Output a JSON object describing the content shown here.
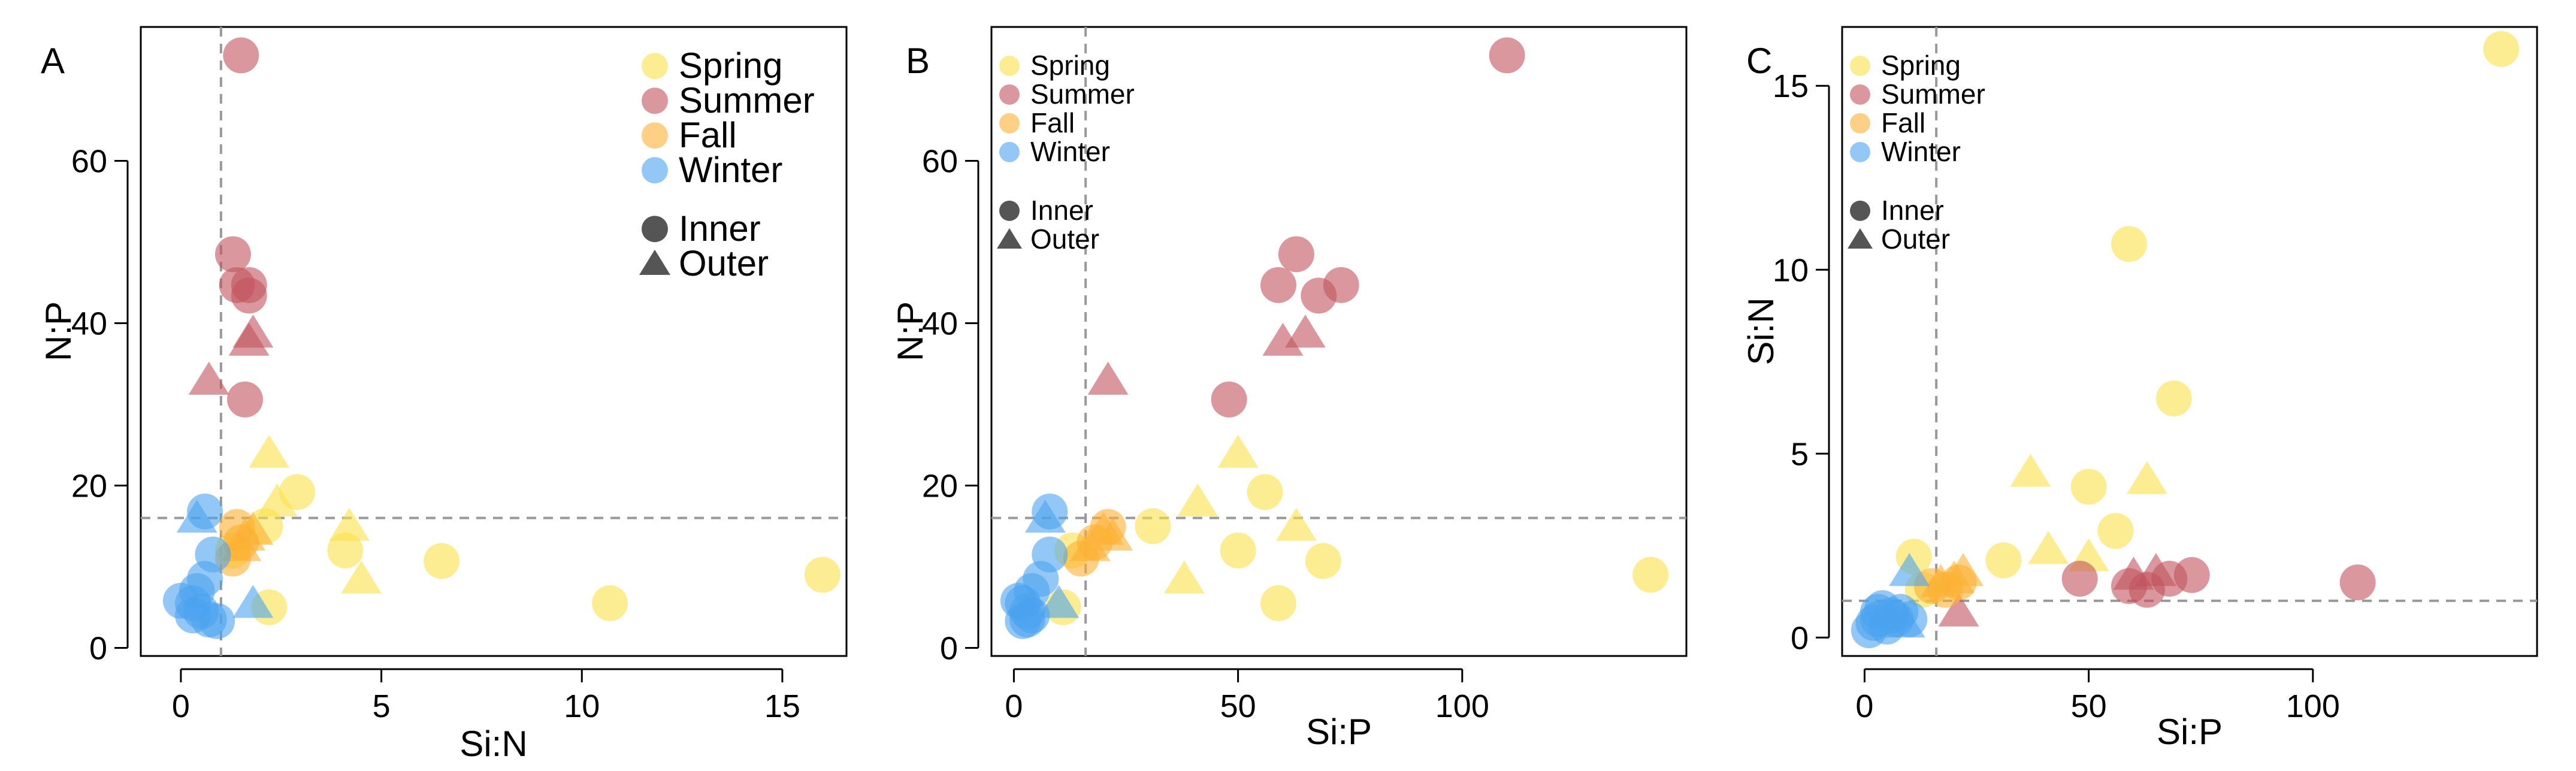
{
  "colors": {
    "Spring": "#FBE14A",
    "Summer": "#C2545E",
    "Fall": "#FBB133",
    "Winter": "#4BA3F0",
    "legend_shape": "#555555",
    "reference_line": "#999999",
    "axes": "#000000"
  },
  "chart_data": [
    {
      "type": "scatter",
      "panel_label": "A",
      "xlabel": "Si:N",
      "ylabel": "N:P",
      "xlim": [
        -1.0,
        16.6
      ],
      "ylim": [
        -1.0,
        76.5
      ],
      "xticks": [
        0,
        5,
        10,
        15
      ],
      "yticks": [
        0,
        20,
        40,
        60
      ],
      "reference_lines": {
        "x": 1,
        "y": 16
      },
      "legend": {
        "placement": "top-right",
        "large": true,
        "seasons": [
          {
            "label": "Spring",
            "season": "Spring"
          },
          {
            "label": "Summer",
            "season": "Summer"
          },
          {
            "label": "Fall",
            "season": "Fall"
          },
          {
            "label": "Winter",
            "season": "Winter"
          }
        ],
        "sites": [
          {
            "label": "Inner",
            "marker": "circle"
          },
          {
            "label": "Outer",
            "marker": "triangle"
          }
        ]
      },
      "series": [
        {
          "season": "Spring",
          "site": "Inner",
          "points": [
            [
              16.0,
              9.0
            ],
            [
              10.7,
              5.5
            ],
            [
              6.5,
              10.7
            ],
            [
              4.1,
              12.0
            ],
            [
              2.9,
              19.2
            ],
            [
              2.1,
              15.0
            ],
            [
              2.2,
              5.0
            ],
            [
              1.3,
              12.0
            ]
          ]
        },
        {
          "season": "Spring",
          "site": "Outer",
          "points": [
            [
              2.2,
              24.0
            ],
            [
              2.4,
              18.0
            ],
            [
              4.2,
              15.0
            ],
            [
              4.5,
              8.5
            ]
          ]
        },
        {
          "season": "Summer",
          "site": "Inner",
          "points": [
            [
              1.5,
              73.0
            ],
            [
              1.3,
              48.5
            ],
            [
              1.4,
              44.7
            ],
            [
              1.7,
              44.7
            ],
            [
              1.7,
              43.4
            ],
            [
              1.6,
              30.6
            ]
          ]
        },
        {
          "season": "Summer",
          "site": "Outer",
          "points": [
            [
              0.7,
              33.0
            ],
            [
              1.7,
              37.8
            ],
            [
              1.8,
              38.8
            ]
          ]
        },
        {
          "season": "Fall",
          "site": "Inner",
          "points": [
            [
              1.4,
              14.9
            ],
            [
              1.3,
              11.0
            ],
            [
              1.5,
              13.0
            ]
          ]
        },
        {
          "season": "Fall",
          "site": "Outer",
          "points": [
            [
              1.6,
              13.8
            ],
            [
              1.8,
              14.5
            ],
            [
              1.5,
              12.5
            ]
          ]
        },
        {
          "season": "Winter",
          "site": "Inner",
          "points": [
            [
              0.6,
              16.8
            ],
            [
              0.8,
              11.5
            ],
            [
              0.6,
              8.5
            ],
            [
              0.4,
              7.0
            ],
            [
              0.0,
              5.8
            ],
            [
              0.3,
              5.5
            ],
            [
              0.5,
              4.5
            ],
            [
              0.7,
              3.5
            ],
            [
              0.9,
              3.3
            ],
            [
              0.3,
              4.0
            ]
          ]
        },
        {
          "season": "Winter",
          "site": "Outer",
          "points": [
            [
              0.4,
              16.0
            ],
            [
              1.8,
              5.5
            ]
          ]
        }
      ]
    },
    {
      "type": "scatter",
      "panel_label": "B",
      "xlabel": "Si:P",
      "ylabel": "N:P",
      "xlim": [
        -5,
        150
      ],
      "ylim": [
        -1.0,
        76.5
      ],
      "xticks": [
        0,
        50,
        100
      ],
      "yticks": [
        0,
        20,
        40,
        60
      ],
      "reference_lines": {
        "x": 16,
        "y": 16
      },
      "legend": {
        "placement": "top-left",
        "large": false,
        "seasons": [
          {
            "label": "Spring",
            "season": "Spring"
          },
          {
            "label": "Summer",
            "season": "Summer"
          },
          {
            "label": "Fall",
            "season": "Fall"
          },
          {
            "label": "Winter",
            "season": "Winter"
          }
        ],
        "sites": [
          {
            "label": "Inner",
            "marker": "circle"
          },
          {
            "label": "Outer",
            "marker": "triangle"
          }
        ]
      },
      "series": [
        {
          "season": "Spring",
          "site": "Inner",
          "points": [
            [
              142,
              9.0
            ],
            [
              69,
              10.7
            ],
            [
              59,
              5.5
            ],
            [
              56,
              19.2
            ],
            [
              50,
              12.0
            ],
            [
              31,
              15.0
            ],
            [
              11,
              5.0
            ],
            [
              13,
              12.0
            ]
          ]
        },
        {
          "season": "Spring",
          "site": "Outer",
          "points": [
            [
              50,
              24.0
            ],
            [
              41,
              18.0
            ],
            [
              63,
              15.0
            ],
            [
              38,
              8.5
            ]
          ]
        },
        {
          "season": "Summer",
          "site": "Inner",
          "points": [
            [
              110,
              73.0
            ],
            [
              63,
              48.5
            ],
            [
              59,
              44.7
            ],
            [
              73,
              44.7
            ],
            [
              68,
              43.4
            ],
            [
              48,
              30.6
            ]
          ]
        },
        {
          "season": "Summer",
          "site": "Outer",
          "points": [
            [
              21,
              33.0
            ],
            [
              60,
              37.8
            ],
            [
              65,
              38.8
            ]
          ]
        },
        {
          "season": "Fall",
          "site": "Inner",
          "points": [
            [
              21,
              14.9
            ],
            [
              15,
              11.0
            ],
            [
              18,
              13.0
            ]
          ]
        },
        {
          "season": "Fall",
          "site": "Outer",
          "points": [
            [
              22,
              13.8
            ],
            [
              20,
              14.5
            ],
            [
              17,
              12.5
            ]
          ]
        },
        {
          "season": "Winter",
          "site": "Inner",
          "points": [
            [
              8,
              16.8
            ],
            [
              8,
              11.5
            ],
            [
              6,
              8.5
            ],
            [
              4,
              7.0
            ],
            [
              1,
              5.8
            ],
            [
              2,
              5.5
            ],
            [
              3,
              4.5
            ],
            [
              3,
              3.5
            ],
            [
              2,
              3.3
            ],
            [
              4,
              4.0
            ]
          ]
        },
        {
          "season": "Winter",
          "site": "Outer",
          "points": [
            [
              7,
              16.0
            ],
            [
              10,
              5.5
            ]
          ]
        }
      ]
    },
    {
      "type": "scatter",
      "panel_label": "C",
      "xlabel": "Si:P",
      "ylabel": "Si:N",
      "xlim": [
        -5,
        150
      ],
      "ylim": [
        -0.5,
        16.6
      ],
      "xticks": [
        0,
        50,
        100
      ],
      "yticks": [
        0,
        5,
        10,
        15
      ],
      "reference_lines": {
        "x": 16,
        "y": 1
      },
      "legend": {
        "placement": "top-left",
        "large": false,
        "seasons": [
          {
            "label": "Spring",
            "season": "Spring"
          },
          {
            "label": "Summer",
            "season": "Summer"
          },
          {
            "label": "Fall",
            "season": "Fall"
          },
          {
            "label": "Winter",
            "season": "Winter"
          }
        ],
        "sites": [
          {
            "label": "Inner",
            "marker": "circle"
          },
          {
            "label": "Outer",
            "marker": "triangle"
          }
        ]
      },
      "series": [
        {
          "season": "Spring",
          "site": "Inner",
          "points": [
            [
              142,
              16.0
            ],
            [
              59,
              10.7
            ],
            [
              69,
              6.5
            ],
            [
              50,
              4.1
            ],
            [
              56,
              2.9
            ],
            [
              31,
              2.1
            ],
            [
              11,
              2.2
            ],
            [
              13,
              1.3
            ]
          ]
        },
        {
          "season": "Spring",
          "site": "Outer",
          "points": [
            [
              37,
              4.5
            ],
            [
              63,
              4.3
            ],
            [
              41,
              2.4
            ],
            [
              50,
              2.2
            ]
          ]
        },
        {
          "season": "Summer",
          "site": "Inner",
          "points": [
            [
              110,
              1.5
            ],
            [
              73,
              1.7
            ],
            [
              68,
              1.6
            ],
            [
              63,
              1.3
            ],
            [
              59,
              1.4
            ],
            [
              48,
              1.6
            ]
          ]
        },
        {
          "season": "Summer",
          "site": "Outer",
          "points": [
            [
              21,
              0.7
            ],
            [
              60,
              1.7
            ],
            [
              65,
              1.8
            ]
          ]
        },
        {
          "season": "Fall",
          "site": "Inner",
          "points": [
            [
              15,
              1.4
            ],
            [
              18,
              1.3
            ],
            [
              21,
              1.5
            ]
          ]
        },
        {
          "season": "Fall",
          "site": "Outer",
          "points": [
            [
              22,
              1.8
            ],
            [
              20,
              1.6
            ],
            [
              17,
              1.5
            ]
          ]
        },
        {
          "season": "Winter",
          "site": "Inner",
          "points": [
            [
              1,
              0.2
            ],
            [
              3,
              0.5
            ],
            [
              4,
              0.8
            ],
            [
              6,
              0.6
            ],
            [
              8,
              0.7
            ],
            [
              10,
              0.5
            ],
            [
              2,
              0.4
            ],
            [
              5,
              0.3
            ],
            [
              7,
              0.5
            ],
            [
              3,
              0.7
            ]
          ]
        },
        {
          "season": "Winter",
          "site": "Outer",
          "points": [
            [
              10,
              1.8
            ],
            [
              9,
              0.4
            ]
          ]
        }
      ]
    }
  ]
}
